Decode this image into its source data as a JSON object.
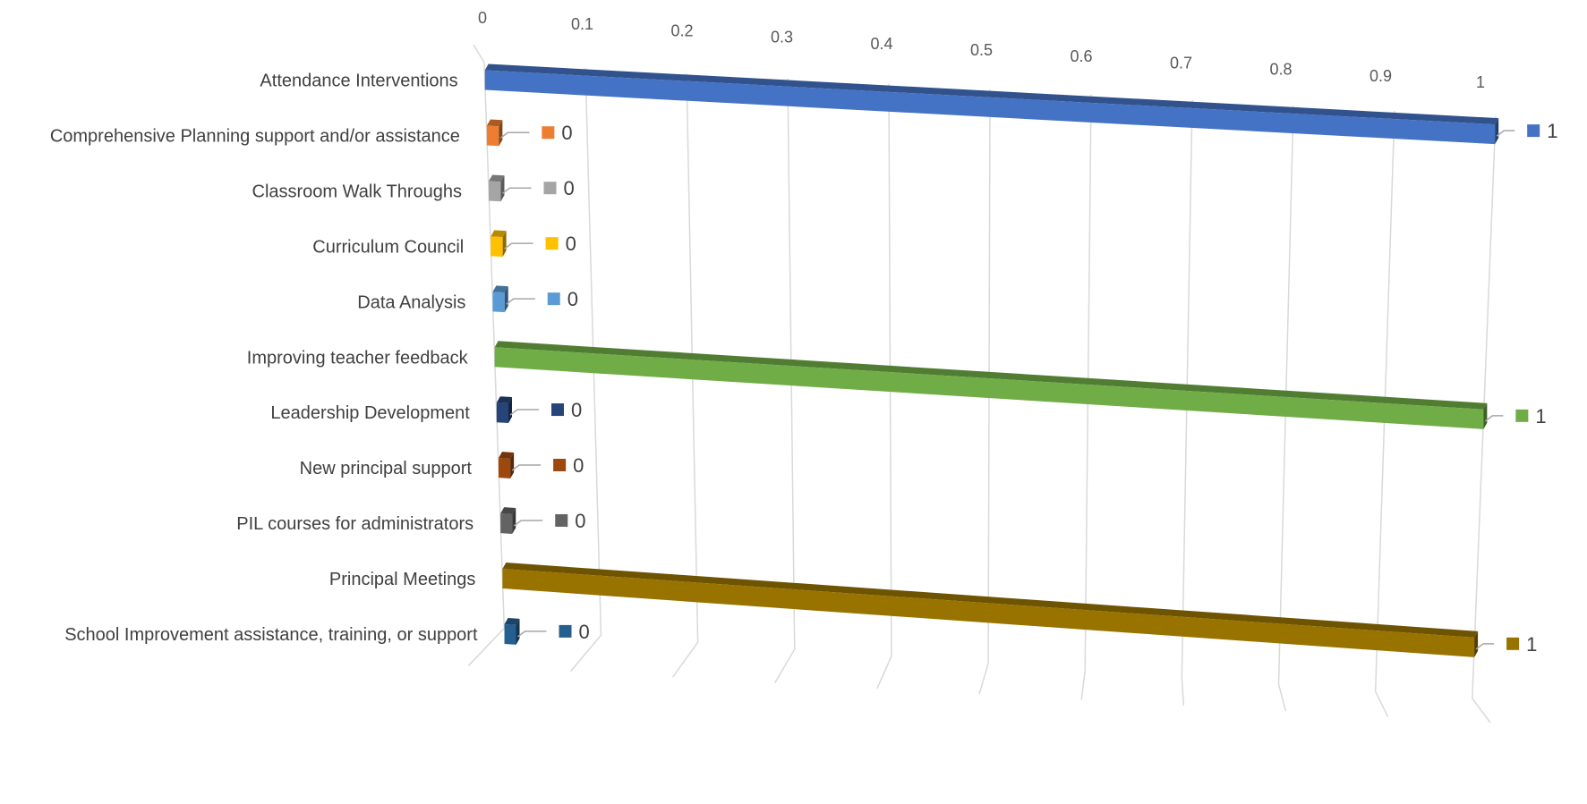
{
  "chart_data": {
    "type": "bar",
    "orientation": "horizontal",
    "perspective": "3d",
    "categories": [
      "Attendance Interventions",
      "Comprehensive Planning support and/or assistance",
      "Classroom Walk Throughs",
      "Curriculum Council",
      "Data Analysis",
      "Improving teacher feedback",
      "Leadership Development",
      "New principal support",
      "PIL courses for administrators",
      "Principal Meetings",
      "School Improvement assistance, training, or support"
    ],
    "values": [
      1,
      0,
      0,
      0,
      0,
      1,
      0,
      0,
      0,
      1,
      0
    ],
    "data_labels": [
      "1",
      "0",
      "0",
      "0",
      "0",
      "1",
      "0",
      "0",
      "0",
      "1",
      "0"
    ],
    "colors": [
      "#4472c4",
      "#ed7d31",
      "#a5a5a5",
      "#ffc000",
      "#5b9bd5",
      "#70ad47",
      "#264478",
      "#9e480e",
      "#636363",
      "#997300",
      "#255e91"
    ],
    "x_ticks": [
      "0",
      "0.1",
      "0.2",
      "0.3",
      "0.4",
      "0.5",
      "0.6",
      "0.7",
      "0.8",
      "0.9",
      "1"
    ],
    "xlim": [
      0,
      1
    ],
    "legend": "none",
    "grid": true,
    "title": "",
    "xlabel": "",
    "ylabel": ""
  }
}
